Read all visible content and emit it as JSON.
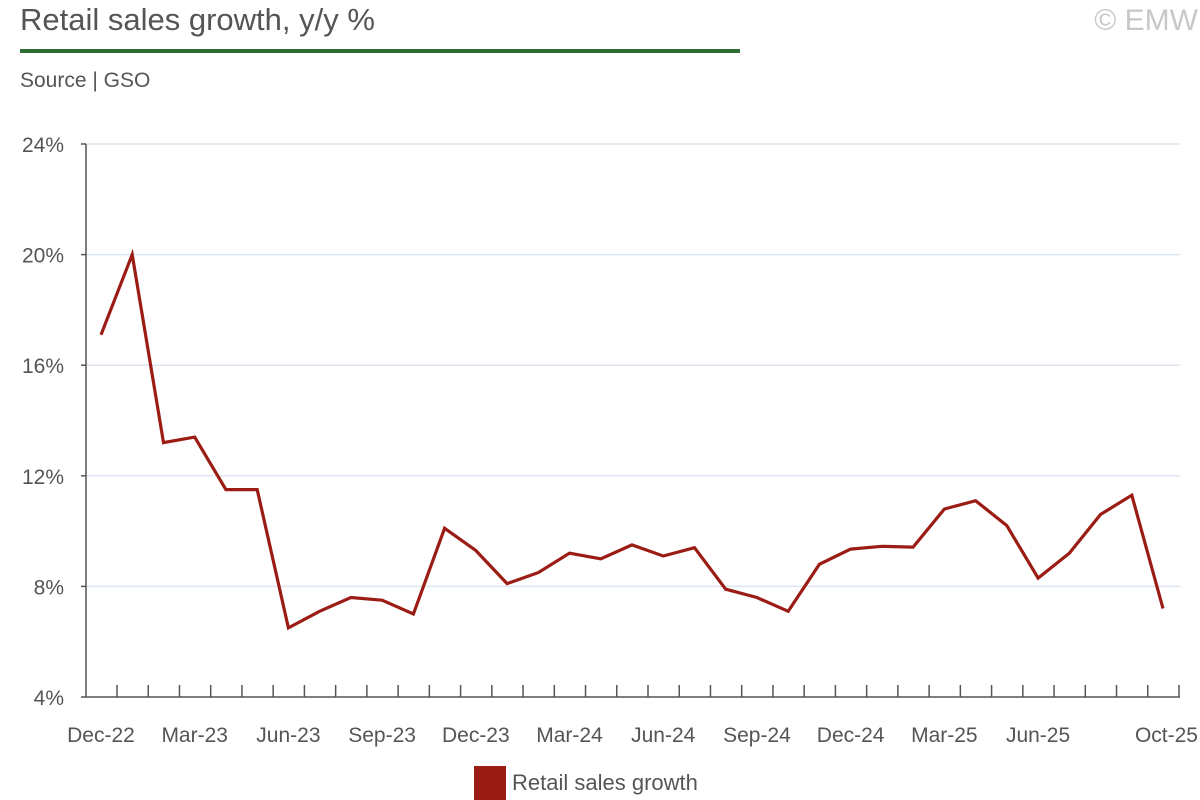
{
  "title": "Retail sales growth, y/y %",
  "copyright": "© EMW",
  "source": "Source | GSO",
  "colors": {
    "series": "#9b1c14",
    "title_rule": "#2e6b30",
    "grid": "#dde6f0",
    "axis": "#555555"
  },
  "chart_data": {
    "type": "line",
    "title": "Retail sales growth, y/y %",
    "xlabel": "",
    "ylabel": "",
    "ylim": [
      4,
      24
    ],
    "yticks": [
      4,
      8,
      12,
      16,
      20,
      24
    ],
    "ytick_labels": [
      "4%",
      "8%",
      "12%",
      "16%",
      "20%",
      "24%"
    ],
    "grid": true,
    "legend_position": "bottom",
    "x": [
      "Dec-22",
      "Jan-23",
      "Feb-23",
      "Mar-23",
      "Apr-23",
      "May-23",
      "Jun-23",
      "Jul-23",
      "Aug-23",
      "Sep-23",
      "Oct-23",
      "Nov-23",
      "Dec-23",
      "Jan-24",
      "Feb-24",
      "Mar-24",
      "Apr-24",
      "May-24",
      "Jun-24",
      "Jul-24",
      "Aug-24",
      "Sep-24",
      "Oct-24",
      "Nov-24",
      "Dec-24",
      "Jan-25",
      "Feb-25",
      "Mar-25",
      "Apr-25",
      "May-25",
      "Jun-25",
      "Jul-25",
      "Aug-25",
      "Sep-25",
      "Oct-25"
    ],
    "xtick_labels": [
      {
        "index": 0,
        "label": "Dec-22"
      },
      {
        "index": 3,
        "label": "Mar-23"
      },
      {
        "index": 6,
        "label": "Jun-23"
      },
      {
        "index": 9,
        "label": "Sep-23"
      },
      {
        "index": 12,
        "label": "Dec-23"
      },
      {
        "index": 15,
        "label": "Mar-24"
      },
      {
        "index": 18,
        "label": "Jun-24"
      },
      {
        "index": 21,
        "label": "Sep-24"
      },
      {
        "index": 24,
        "label": "Dec-24"
      },
      {
        "index": 27,
        "label": "Mar-25"
      },
      {
        "index": 30,
        "label": "Jun-25"
      },
      {
        "index": 34,
        "label": "Oct-25"
      }
    ],
    "series": [
      {
        "name": "Retail sales growth",
        "color": "#9b1c14",
        "values": [
          17.1,
          20.0,
          13.2,
          13.4,
          11.5,
          11.5,
          6.5,
          7.1,
          7.6,
          7.5,
          7.0,
          10.1,
          9.3,
          8.1,
          8.5,
          9.2,
          9.0,
          9.5,
          9.1,
          9.4,
          7.9,
          7.6,
          7.1,
          8.8,
          9.35,
          9.45,
          9.42,
          10.8,
          11.1,
          10.2,
          8.3,
          9.2,
          10.6,
          11.3,
          7.2
        ]
      }
    ]
  },
  "legend": {
    "label": "Retail sales growth"
  }
}
